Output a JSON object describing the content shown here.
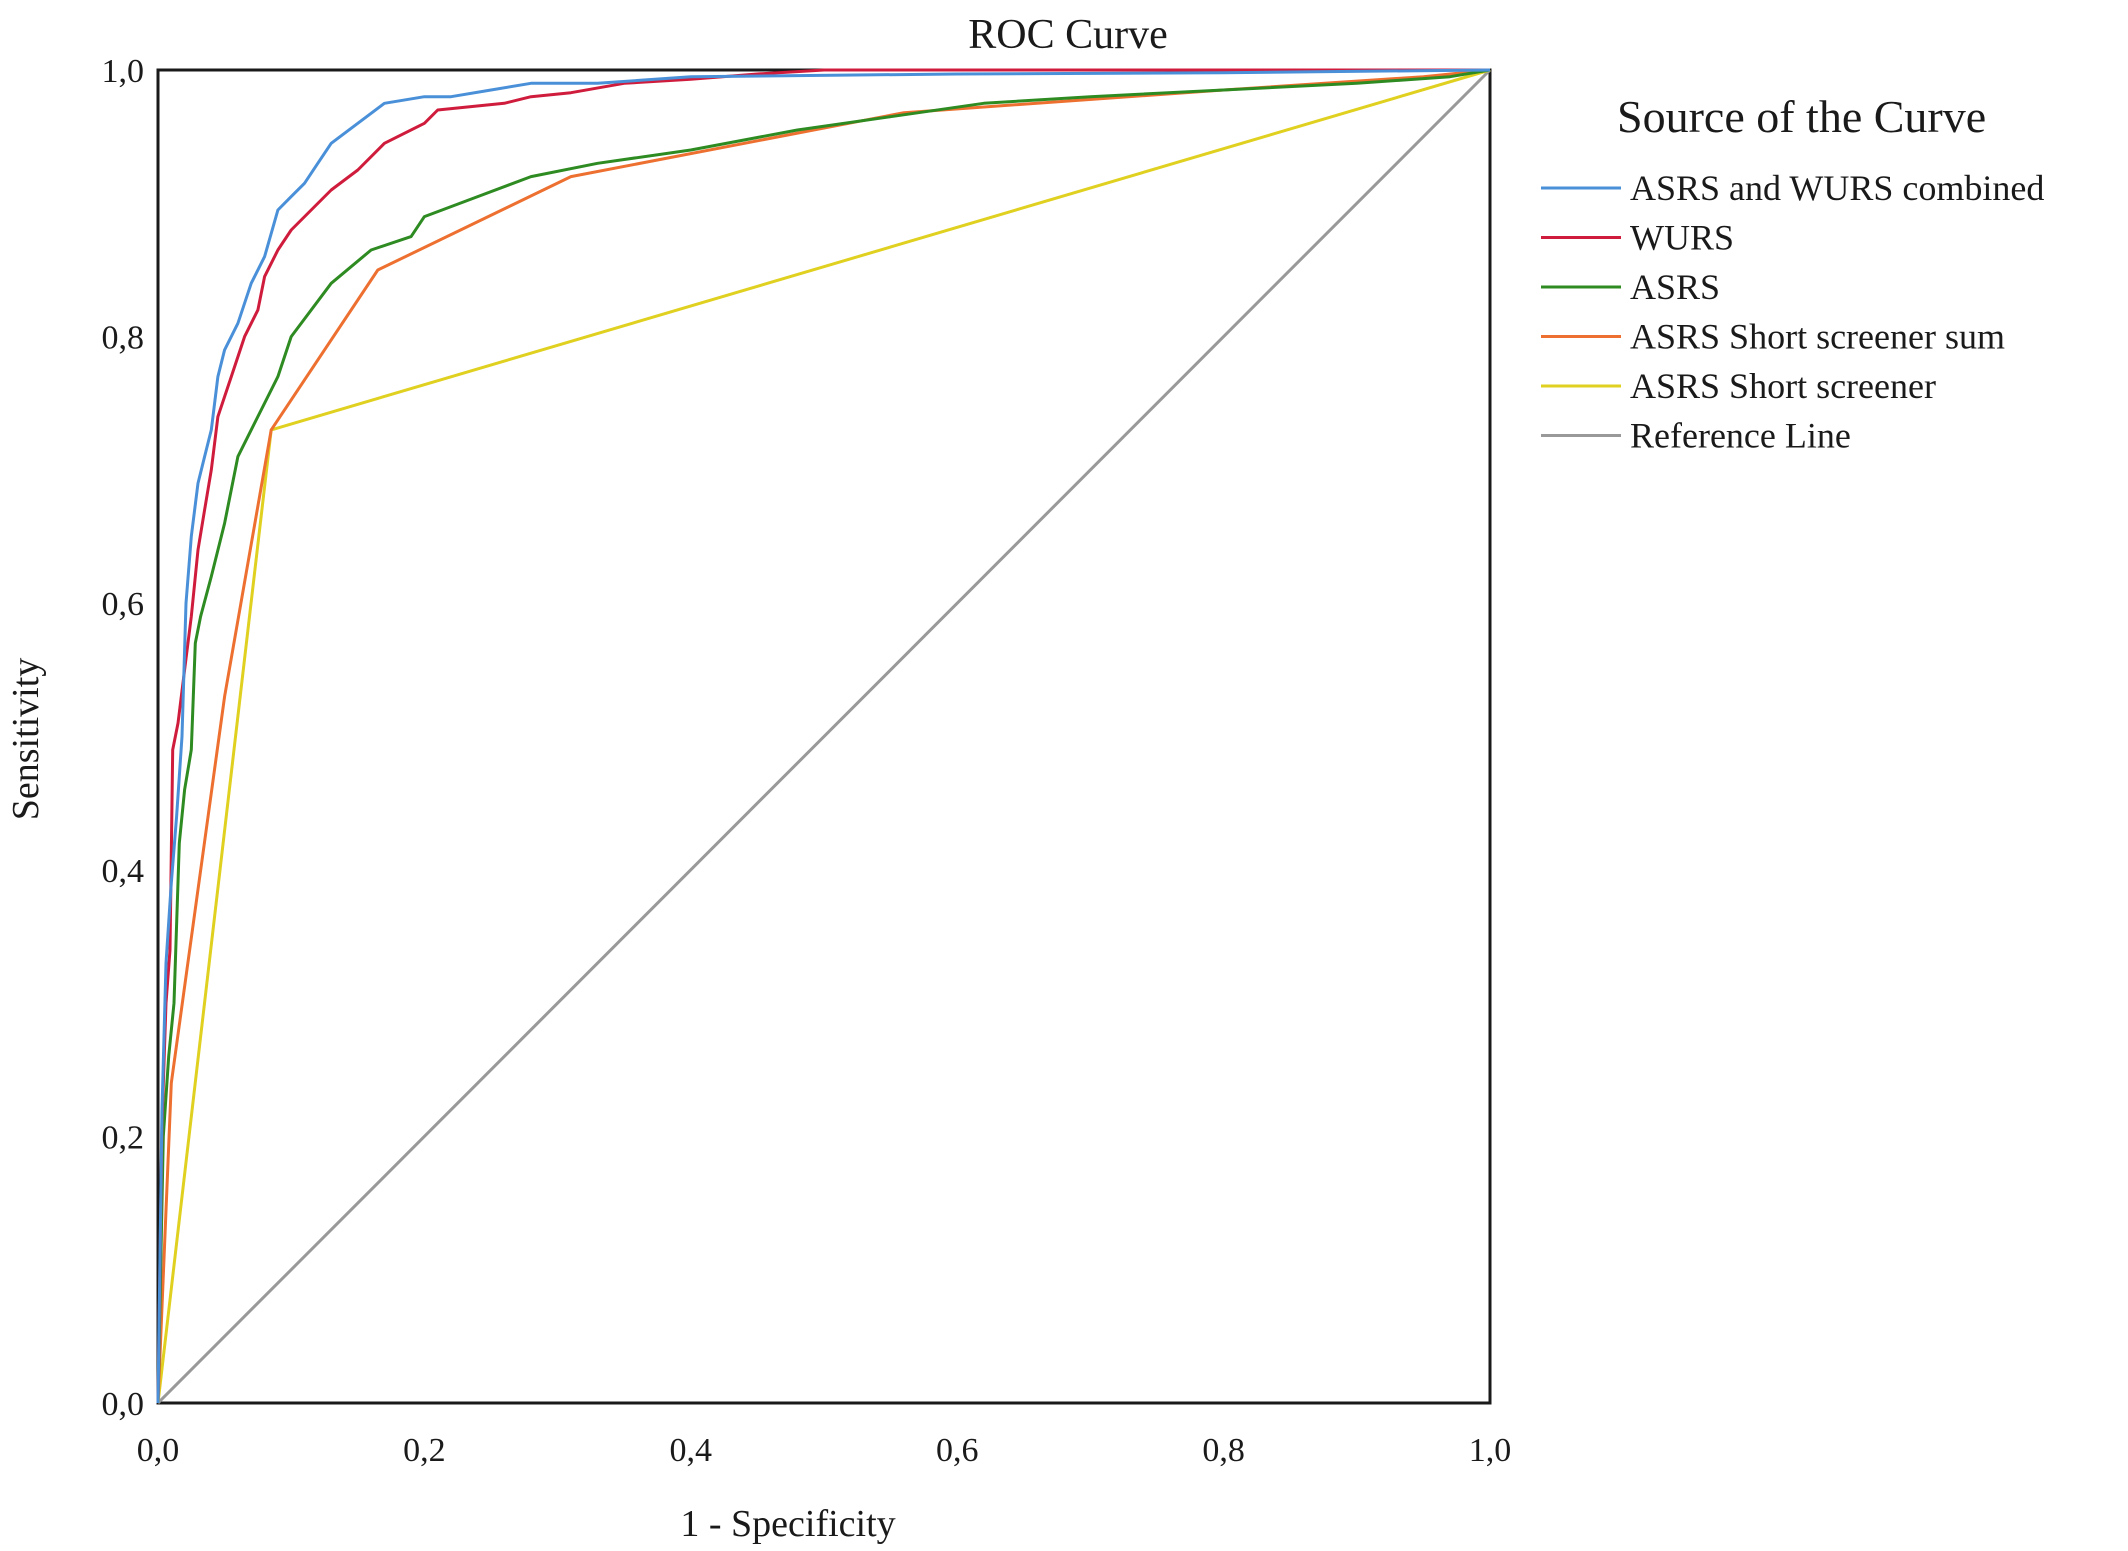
{
  "chart_data": {
    "type": "line",
    "title": "ROC Curve",
    "xlabel": "1 - Specificity",
    "ylabel": "Sensitivity",
    "xlim": [
      0,
      1
    ],
    "ylim": [
      0,
      1
    ],
    "x_ticks": [
      "0,0",
      "0,2",
      "0,4",
      "0,6",
      "0,8",
      "1,0"
    ],
    "y_ticks": [
      "0,0",
      "0,2",
      "0,4",
      "0,6",
      "0,8",
      "1,0"
    ],
    "grid": false,
    "legend_title": "Source of the Curve",
    "legend_position": "right",
    "series": [
      {
        "name": "ASRS and WURS combined",
        "color": "#4a90d9",
        "points": [
          [
            0,
            0
          ],
          [
            0.003,
            0.22
          ],
          [
            0.006,
            0.33
          ],
          [
            0.01,
            0.39
          ],
          [
            0.014,
            0.44
          ],
          [
            0.018,
            0.5
          ],
          [
            0.021,
            0.6
          ],
          [
            0.025,
            0.65
          ],
          [
            0.03,
            0.69
          ],
          [
            0.035,
            0.71
          ],
          [
            0.04,
            0.73
          ],
          [
            0.045,
            0.77
          ],
          [
            0.05,
            0.79
          ],
          [
            0.06,
            0.81
          ],
          [
            0.07,
            0.84
          ],
          [
            0.08,
            0.86
          ],
          [
            0.09,
            0.895
          ],
          [
            0.1,
            0.905
          ],
          [
            0.11,
            0.915
          ],
          [
            0.12,
            0.93
          ],
          [
            0.13,
            0.945
          ],
          [
            0.15,
            0.96
          ],
          [
            0.17,
            0.975
          ],
          [
            0.2,
            0.98
          ],
          [
            0.22,
            0.98
          ],
          [
            0.25,
            0.985
          ],
          [
            0.28,
            0.99
          ],
          [
            0.33,
            0.99
          ],
          [
            0.4,
            0.995
          ],
          [
            0.6,
            0.997
          ],
          [
            0.8,
            0.998
          ],
          [
            1,
            1
          ]
        ]
      },
      {
        "name": "WURS",
        "color": "#d01c3c",
        "points": [
          [
            0,
            0
          ],
          [
            0.003,
            0.21
          ],
          [
            0.006,
            0.3
          ],
          [
            0.009,
            0.34
          ],
          [
            0.011,
            0.49
          ],
          [
            0.015,
            0.51
          ],
          [
            0.02,
            0.55
          ],
          [
            0.025,
            0.59
          ],
          [
            0.03,
            0.64
          ],
          [
            0.035,
            0.67
          ],
          [
            0.04,
            0.7
          ],
          [
            0.045,
            0.74
          ],
          [
            0.055,
            0.77
          ],
          [
            0.065,
            0.8
          ],
          [
            0.075,
            0.82
          ],
          [
            0.08,
            0.845
          ],
          [
            0.09,
            0.865
          ],
          [
            0.1,
            0.88
          ],
          [
            0.115,
            0.895
          ],
          [
            0.13,
            0.91
          ],
          [
            0.15,
            0.925
          ],
          [
            0.17,
            0.945
          ],
          [
            0.2,
            0.96
          ],
          [
            0.21,
            0.97
          ],
          [
            0.26,
            0.975
          ],
          [
            0.28,
            0.98
          ],
          [
            0.31,
            0.983
          ],
          [
            0.35,
            0.99
          ],
          [
            0.4,
            0.993
          ],
          [
            0.45,
            0.997
          ],
          [
            0.5,
            1
          ],
          [
            1,
            1
          ]
        ]
      },
      {
        "name": "ASRS",
        "color": "#2e8b22",
        "points": [
          [
            0,
            0
          ],
          [
            0.004,
            0.2
          ],
          [
            0.008,
            0.26
          ],
          [
            0.012,
            0.3
          ],
          [
            0.016,
            0.42
          ],
          [
            0.02,
            0.46
          ],
          [
            0.025,
            0.49
          ],
          [
            0.028,
            0.57
          ],
          [
            0.032,
            0.59
          ],
          [
            0.04,
            0.62
          ],
          [
            0.05,
            0.66
          ],
          [
            0.06,
            0.71
          ],
          [
            0.07,
            0.73
          ],
          [
            0.09,
            0.77
          ],
          [
            0.1,
            0.8
          ],
          [
            0.13,
            0.84
          ],
          [
            0.16,
            0.865
          ],
          [
            0.19,
            0.875
          ],
          [
            0.2,
            0.89
          ],
          [
            0.24,
            0.905
          ],
          [
            0.28,
            0.92
          ],
          [
            0.33,
            0.93
          ],
          [
            0.4,
            0.94
          ],
          [
            0.48,
            0.955
          ],
          [
            0.55,
            0.965
          ],
          [
            0.62,
            0.975
          ],
          [
            0.7,
            0.98
          ],
          [
            0.8,
            0.985
          ],
          [
            0.9,
            0.99
          ],
          [
            0.97,
            0.995
          ],
          [
            1,
            1
          ]
        ]
      },
      {
        "name": "ASRS Short screener sum",
        "color": "#ed7030",
        "points": [
          [
            0,
            0
          ],
          [
            0.01,
            0.24
          ],
          [
            0.05,
            0.53
          ],
          [
            0.085,
            0.73
          ],
          [
            0.165,
            0.85
          ],
          [
            0.31,
            0.92
          ],
          [
            0.56,
            0.968
          ],
          [
            0.8,
            0.985
          ],
          [
            0.95,
            0.995
          ],
          [
            1,
            1
          ]
        ]
      },
      {
        "name": "ASRS Short screener",
        "color": "#e0d020",
        "points": [
          [
            0,
            0
          ],
          [
            0.085,
            0.73
          ],
          [
            1,
            1
          ]
        ]
      },
      {
        "name": "Reference Line",
        "color": "#999999",
        "points": [
          [
            0,
            0
          ],
          [
            1,
            1
          ]
        ]
      }
    ]
  }
}
